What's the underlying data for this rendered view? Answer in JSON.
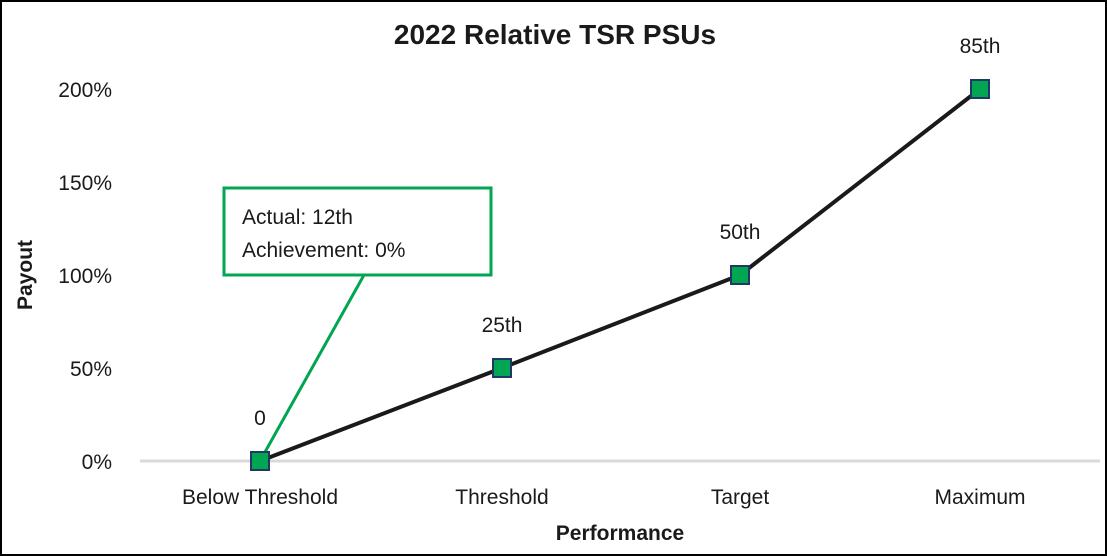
{
  "chart_data": {
    "type": "line",
    "title": "2022 Relative TSR PSUs",
    "xlabel": "Performance",
    "ylabel": "Payout",
    "categories": [
      "Below Threshold",
      "Threshold",
      "Target",
      "Maximum"
    ],
    "series": [
      {
        "values": [
          0,
          50,
          100,
          200
        ],
        "point_labels": [
          "0",
          "25th",
          "50th",
          "85th"
        ]
      }
    ],
    "yticks": [
      0,
      50,
      100,
      150,
      200
    ],
    "ytick_labels": [
      "0%",
      "50%",
      "100%",
      "150%",
      "200%"
    ],
    "ylim": [
      0,
      200
    ],
    "grid": false,
    "legend": "none",
    "annotation": {
      "lines": [
        "Actual: 12th",
        "Achievement: 0%"
      ],
      "points_to_category": "Below Threshold"
    },
    "colors": {
      "line": "#1a1a1a",
      "marker_fill": "#00a651",
      "marker_stroke": "#1f3864",
      "callout_border": "#00a651",
      "axis_line": "#d9d9d9"
    }
  }
}
